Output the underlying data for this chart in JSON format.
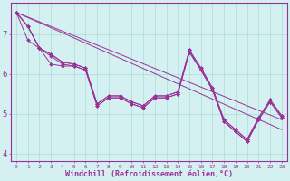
{
  "xlabel": "Windchill (Refroidissement éolien,°C)",
  "background_color": "#d4f0f0",
  "line_color": "#993399",
  "grid_color": "#aadddd",
  "axis_color": "#993399",
  "xlim": [
    -0.5,
    23.5
  ],
  "ylim": [
    3.8,
    7.8
  ],
  "xticks": [
    0,
    1,
    2,
    3,
    4,
    5,
    6,
    7,
    8,
    9,
    10,
    11,
    12,
    13,
    14,
    15,
    16,
    17,
    18,
    19,
    20,
    21,
    22,
    23
  ],
  "yticks": [
    4,
    5,
    6,
    7
  ],
  "series": [
    [
      7.55,
      7.2,
      6.65,
      6.5,
      6.3,
      6.25,
      6.15,
      5.25,
      5.45,
      5.45,
      5.3,
      5.2,
      5.45,
      5.45,
      5.55,
      6.6,
      6.15,
      5.65,
      4.85,
      4.6,
      4.35,
      4.9,
      5.35,
      4.95
    ],
    [
      7.55,
      7.2,
      6.65,
      6.45,
      6.25,
      6.2,
      6.1,
      5.2,
      5.4,
      5.4,
      5.25,
      5.15,
      5.4,
      5.4,
      5.5,
      6.55,
      6.1,
      5.6,
      4.8,
      4.55,
      4.3,
      4.85,
      5.3,
      4.9
    ],
    [
      7.55,
      6.85,
      6.65,
      6.25,
      6.2,
      6.2,
      6.1,
      5.2,
      5.4,
      5.4,
      5.25,
      5.15,
      5.4,
      5.4,
      5.5,
      6.55,
      6.1,
      5.6,
      4.8,
      4.55,
      4.3,
      4.85,
      5.3,
      4.9
    ],
    [
      7.55,
      7.2,
      6.65,
      6.5,
      6.3,
      6.25,
      6.15,
      5.25,
      5.45,
      5.45,
      5.3,
      5.2,
      5.45,
      5.45,
      5.55,
      6.6,
      6.15,
      5.65,
      4.85,
      4.6,
      4.35,
      4.9,
      5.35,
      4.95
    ]
  ],
  "trend_series": [
    {
      "start": 0,
      "end": 23,
      "y_start": 7.55,
      "y_end": 4.6
    },
    {
      "start": 0,
      "end": 23,
      "y_start": 7.55,
      "y_end": 4.85
    }
  ]
}
